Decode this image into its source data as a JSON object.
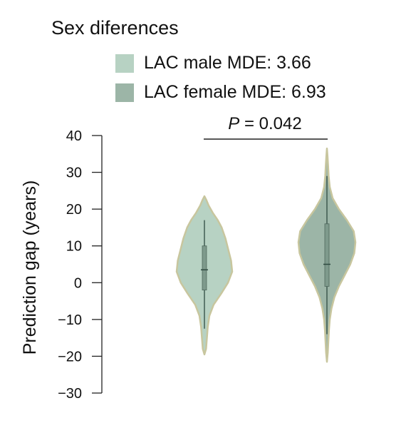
{
  "chart_data": {
    "type": "violin",
    "title": "Sex diferences",
    "ylabel": "Prediction gap (years)",
    "ylim": [
      -30,
      40
    ],
    "yticks": [
      40,
      30,
      20,
      10,
      0,
      -10,
      -20,
      -30
    ],
    "ytick_labels": [
      "40",
      "30",
      "20",
      "10",
      "0",
      "−10",
      "−20",
      "−30"
    ],
    "legend_placement": "top",
    "annotation": {
      "p_label": "P",
      "p_value_text": " = 0.042"
    },
    "series": [
      {
        "name": "LAC male MDE: 3.66",
        "color": "#b7d2c3",
        "edge": "#c8c69e",
        "range": [
          -19.5,
          23.5
        ],
        "whisker": [
          -12.5,
          17
        ],
        "box": [
          -2,
          10
        ],
        "median": 3.5,
        "profile": [
          [
            -19.5,
            0
          ],
          [
            -18,
            0.06
          ],
          [
            -15,
            0.09
          ],
          [
            -12,
            0.12
          ],
          [
            -9,
            0.18
          ],
          [
            -6,
            0.33
          ],
          [
            -3,
            0.6
          ],
          [
            0,
            0.85
          ],
          [
            3,
            1.0
          ],
          [
            6,
            0.96
          ],
          [
            9,
            0.86
          ],
          [
            12,
            0.76
          ],
          [
            15,
            0.62
          ],
          [
            17,
            0.48
          ],
          [
            19,
            0.3
          ],
          [
            21,
            0.15
          ],
          [
            22.5,
            0.07
          ],
          [
            23.5,
            0
          ]
        ]
      },
      {
        "name": "LAC female MDE: 6.93",
        "color": "#9cb5a7",
        "edge": "#c8c69e",
        "range": [
          -21.5,
          36.5
        ],
        "whisker": [
          -14,
          29
        ],
        "box": [
          -1,
          16
        ],
        "median": 5,
        "profile": [
          [
            -21.5,
            0
          ],
          [
            -19,
            0.03
          ],
          [
            -16,
            0.05
          ],
          [
            -13,
            0.07
          ],
          [
            -10,
            0.1
          ],
          [
            -7,
            0.16
          ],
          [
            -4,
            0.26
          ],
          [
            -1,
            0.42
          ],
          [
            2,
            0.62
          ],
          [
            5,
            0.82
          ],
          [
            8,
            0.96
          ],
          [
            11,
            1.0
          ],
          [
            14,
            0.94
          ],
          [
            17,
            0.7
          ],
          [
            20,
            0.42
          ],
          [
            23,
            0.2
          ],
          [
            26,
            0.1
          ],
          [
            29,
            0.06
          ],
          [
            32,
            0.04
          ],
          [
            34.5,
            0.02
          ],
          [
            36.5,
            0
          ]
        ]
      }
    ]
  }
}
